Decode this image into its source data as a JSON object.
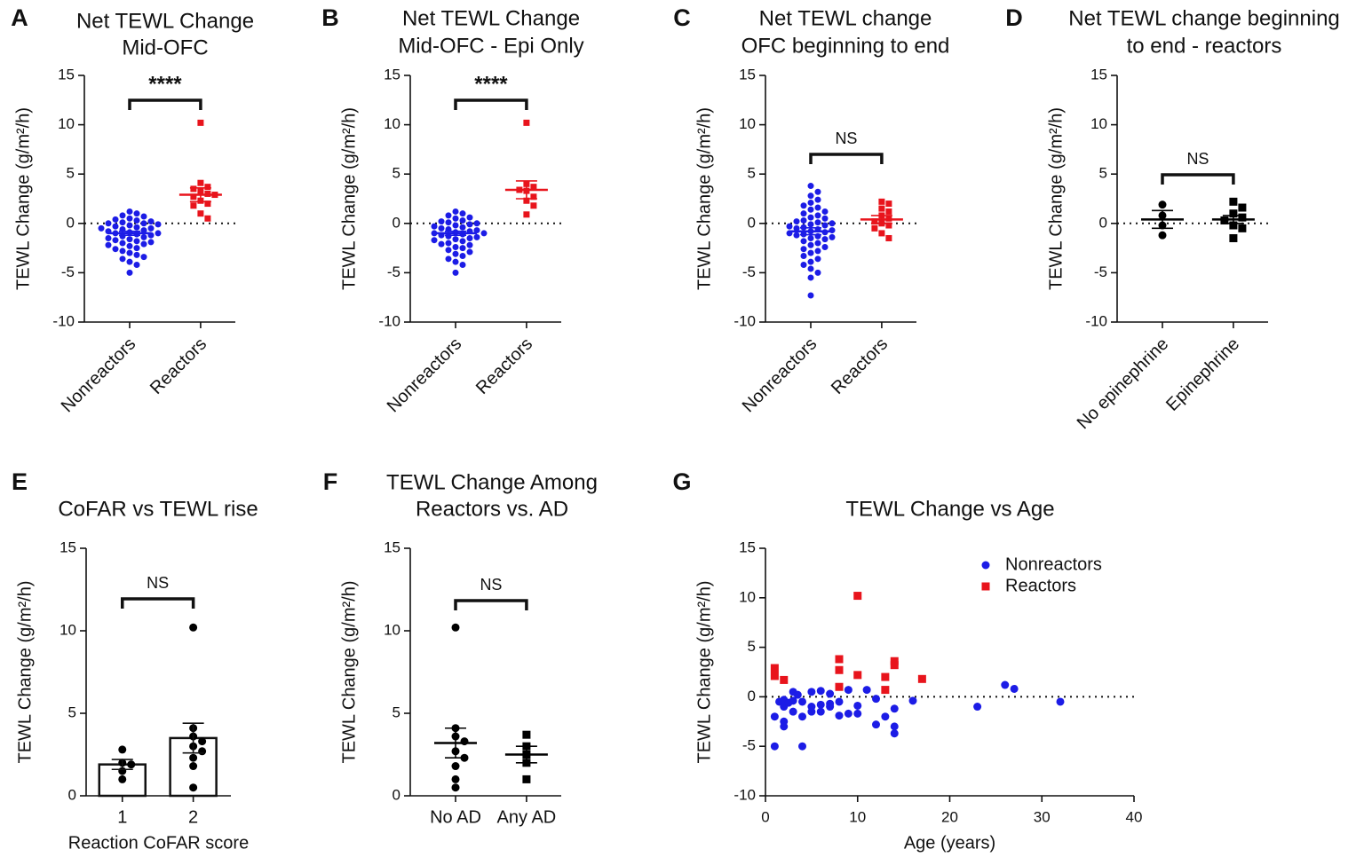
{
  "chart_data": [
    {
      "panel": "A",
      "type": "dotplot",
      "title": [
        "Net TEWL Change",
        "Mid-OFC"
      ],
      "ylabel": "TEWL Change (g/m²/h)",
      "ylim": [
        -10,
        15
      ],
      "yticks": [
        -10,
        -5,
        0,
        5,
        10,
        15
      ],
      "refline": 0,
      "annotation": "****",
      "categories": [
        "Nonreactors",
        "Reactors"
      ],
      "groups": [
        {
          "color": "#1c1ce6",
          "marker": "circle",
          "values": [
            1.2,
            1.0,
            0.8,
            0.7,
            0.5,
            0.4,
            0.3,
            0.2,
            0.1,
            0.0,
            0.0,
            -0.1,
            -0.2,
            -0.3,
            -0.4,
            -0.5,
            -0.5,
            -0.6,
            -0.7,
            -0.8,
            -0.9,
            -1.0,
            -1.0,
            -1.1,
            -1.2,
            -1.3,
            -1.4,
            -1.5,
            -1.6,
            -1.7,
            -1.8,
            -1.9,
            -2.0,
            -2.1,
            -2.2,
            -2.3,
            -2.5,
            -2.6,
            -2.8,
            -3.0,
            -3.2,
            -3.4,
            -3.6,
            -3.9,
            -4.2,
            -5.0
          ],
          "mean": -1.0,
          "sem": 0.2
        },
        {
          "color": "#e8141c",
          "marker": "square",
          "values": [
            10.2,
            4.1,
            3.7,
            3.5,
            3.3,
            3.0,
            2.9,
            2.7,
            2.3,
            2.0,
            1.8,
            1.0,
            0.5
          ],
          "mean": 2.9,
          "sem": 0.7
        }
      ]
    },
    {
      "panel": "B",
      "type": "dotplot",
      "title": [
        "Net TEWL Change",
        "Mid-OFC - Epi Only"
      ],
      "ylabel": "TEWL Change (g/m²/h)",
      "ylim": [
        -10,
        15
      ],
      "yticks": [
        -10,
        -5,
        0,
        5,
        10,
        15
      ],
      "refline": 0,
      "annotation": "****",
      "categories": [
        "Nonreactors",
        "Reactors"
      ],
      "groups": [
        {
          "color": "#1c1ce6",
          "marker": "circle",
          "values": [
            1.2,
            1.0,
            0.8,
            0.6,
            0.5,
            0.3,
            0.2,
            0.1,
            0.0,
            -0.1,
            -0.2,
            -0.3,
            -0.4,
            -0.5,
            -0.6,
            -0.7,
            -0.8,
            -0.9,
            -1.0,
            -1.0,
            -1.1,
            -1.2,
            -1.3,
            -1.4,
            -1.5,
            -1.6,
            -1.7,
            -1.8,
            -2.0,
            -2.1,
            -2.2,
            -2.4,
            -2.5,
            -2.7,
            -2.9,
            -3.1,
            -3.3,
            -3.6,
            -3.9,
            -4.2,
            -5.0
          ],
          "mean": -1.0,
          "sem": 0.2
        },
        {
          "color": "#e8141c",
          "marker": "square",
          "values": [
            10.2,
            4.0,
            3.7,
            3.4,
            3.3,
            2.7,
            2.3,
            1.8,
            0.9
          ],
          "mean": 3.4,
          "sem": 0.9
        }
      ]
    },
    {
      "panel": "C",
      "type": "dotplot",
      "title": [
        "Net TEWL change",
        "OFC beginning to end"
      ],
      "ylabel": "TEWL Change (g/m²/h)",
      "ylim": [
        -10,
        15
      ],
      "yticks": [
        -10,
        -5,
        0,
        5,
        10,
        15
      ],
      "refline": 0,
      "annotation": "NS",
      "categories": [
        "Nonreactors",
        "Reactors"
      ],
      "groups": [
        {
          "color": "#1c1ce6",
          "marker": "circle",
          "values": [
            3.8,
            3.2,
            2.8,
            2.4,
            2.1,
            1.8,
            1.6,
            1.4,
            1.2,
            1.0,
            0.8,
            0.6,
            0.5,
            0.3,
            0.2,
            0.1,
            0.0,
            -0.1,
            -0.2,
            -0.3,
            -0.4,
            -0.5,
            -0.6,
            -0.7,
            -0.8,
            -0.9,
            -1.0,
            -1.1,
            -1.2,
            -1.3,
            -1.4,
            -1.5,
            -1.6,
            -1.8,
            -2.0,
            -2.2,
            -2.4,
            -2.6,
            -2.8,
            -3.0,
            -3.3,
            -3.6,
            -3.9,
            -4.2,
            -4.6,
            -5.0,
            -5.5,
            -7.3
          ],
          "mean": -0.8,
          "sem": 0.35
        },
        {
          "color": "#e8141c",
          "marker": "square",
          "values": [
            2.2,
            2.0,
            1.5,
            1.2,
            0.8,
            0.5,
            0.2,
            0.0,
            -0.2,
            -0.5,
            -1.0,
            -1.5
          ],
          "mean": 0.4,
          "sem": 0.4
        }
      ]
    },
    {
      "panel": "D",
      "type": "dotplot",
      "title": [
        "Net TEWL change beginning",
        "to end - reactors"
      ],
      "ylabel": "TEWL Change (g/m²/h)",
      "ylim": [
        -10,
        15
      ],
      "yticks": [
        -10,
        -5,
        0,
        5,
        10,
        15
      ],
      "refline": 0,
      "annotation": "NS",
      "categories": [
        "No epinephrine",
        "Epinephrine"
      ],
      "groups": [
        {
          "color": "#000000",
          "marker": "circle",
          "values": [
            1.9,
            0.8,
            -0.2,
            -1.2
          ],
          "mean": 0.4,
          "sem": 0.9
        },
        {
          "color": "#000000",
          "marker": "square",
          "values": [
            2.2,
            1.6,
            1.0,
            0.6,
            0.3,
            -0.2,
            -0.5,
            -1.5
          ],
          "mean": 0.4,
          "sem": 0.4
        }
      ]
    },
    {
      "panel": "E",
      "type": "bar",
      "title": [
        "CoFAR vs TEWL rise"
      ],
      "ylabel": "TEWL Change (g/m²/h)",
      "xlabel": "Reaction CoFAR score",
      "ylim": [
        0,
        15
      ],
      "yticks": [
        0,
        5,
        10,
        15
      ],
      "annotation": "NS",
      "categories": [
        "1",
        "2"
      ],
      "groups": [
        {
          "color": "#000000",
          "marker": "circle",
          "values": [
            2.8,
            2.0,
            1.9,
            1.5,
            1.0
          ],
          "mean": 1.9,
          "sem": 0.3
        },
        {
          "color": "#000000",
          "marker": "circle",
          "values": [
            10.2,
            4.1,
            3.6,
            3.3,
            3.0,
            2.7,
            2.3,
            1.8,
            0.5
          ],
          "mean": 3.5,
          "sem": 0.9
        }
      ]
    },
    {
      "panel": "F",
      "type": "dotplot",
      "title": [
        "TEWL Change Among",
        "Reactors vs. AD"
      ],
      "ylabel": "TEWL Change (g/m²/h)",
      "ylim": [
        0,
        15
      ],
      "yticks": [
        0,
        5,
        10,
        15
      ],
      "annotation": "NS",
      "categories": [
        "No AD",
        "Any AD"
      ],
      "groups": [
        {
          "color": "#000000",
          "marker": "circle",
          "values": [
            10.2,
            4.1,
            3.6,
            3.3,
            2.7,
            2.3,
            1.8,
            1.0,
            0.5
          ],
          "mean": 3.2,
          "sem": 0.9
        },
        {
          "color": "#000000",
          "marker": "square",
          "values": [
            3.7,
            3.0,
            2.5,
            2.0,
            1.0
          ],
          "mean": 2.5,
          "sem": 0.5
        }
      ]
    },
    {
      "panel": "G",
      "type": "scatter",
      "title": [
        "TEWL Change vs Age"
      ],
      "ylabel": "TEWL Change (g/m²/h)",
      "xlabel": "Age (years)",
      "xlim": [
        0,
        40
      ],
      "xticks": [
        0,
        10,
        20,
        30,
        40
      ],
      "ylim": [
        -10,
        15
      ],
      "yticks": [
        -10,
        -5,
        0,
        5,
        10,
        15
      ],
      "refline": 0,
      "series": [
        {
          "name": "Nonreactors",
          "color": "#1c1ce6",
          "marker": "circle",
          "x": [
            1,
            1,
            1.5,
            2,
            2,
            2,
            2,
            2.5,
            3,
            3,
            3,
            3.5,
            4,
            4,
            4,
            5,
            5,
            5,
            6,
            6,
            6,
            7,
            7,
            7,
            8,
            8,
            9,
            9,
            10,
            10,
            11,
            12,
            12,
            13,
            14,
            14,
            14,
            16,
            23,
            26,
            27,
            32
          ],
          "values": [
            -5,
            -2,
            -0.5,
            -3,
            -2.5,
            -1.0,
            -0.3,
            -0.6,
            0.5,
            -1.5,
            -0.4,
            0.2,
            -5,
            -2,
            -0.5,
            0.5,
            -1,
            -1.5,
            0.6,
            -0.8,
            -1.5,
            -0.7,
            -1.0,
            0.3,
            -1.9,
            -0.5,
            0.7,
            -1.7,
            -0.9,
            -1.7,
            0.7,
            -0.2,
            -2.8,
            -2.0,
            -3.7,
            -1.2,
            -3.0,
            -0.4,
            -1.0,
            1.2,
            0.8,
            -0.5
          ]
        },
        {
          "name": "Reactors",
          "color": "#e8141c",
          "marker": "square",
          "x": [
            1,
            1,
            2,
            8,
            8,
            8,
            10,
            10,
            13,
            13,
            14,
            14,
            17
          ],
          "values": [
            2.9,
            2.1,
            1.7,
            3.8,
            2.7,
            1.0,
            10.2,
            2.2,
            2.0,
            0.7,
            3.6,
            3.2,
            1.8
          ]
        }
      ]
    }
  ]
}
